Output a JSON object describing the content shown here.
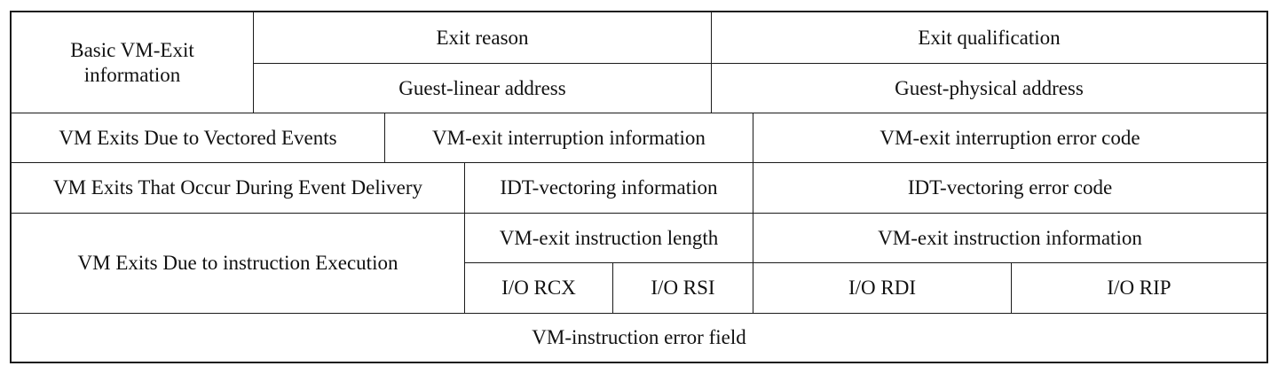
{
  "table": {
    "basic": {
      "label": "Basic VM-Exit\ninformation",
      "exit_reason": "Exit reason",
      "exit_qualification": "Exit qualification",
      "guest_linear": "Guest-linear address",
      "guest_physical": "Guest-physical address"
    },
    "vectored": {
      "label": "VM Exits Due to Vectored Events",
      "interruption_info": "VM-exit interruption information",
      "interruption_error": "VM-exit interruption error code"
    },
    "event_delivery": {
      "label": "VM Exits That Occur During Event Delivery",
      "idt_info": "IDT-vectoring information",
      "idt_error": "IDT-vectoring error code"
    },
    "instruction": {
      "label": "VM Exits Due to instruction Execution",
      "length": "VM-exit instruction length",
      "info": "VM-exit instruction information",
      "rcx": "I/O RCX",
      "rsi": "I/O RSI",
      "rdi": "I/O RDI",
      "rip": "I/O RIP"
    },
    "error_field": "VM-instruction error field"
  }
}
